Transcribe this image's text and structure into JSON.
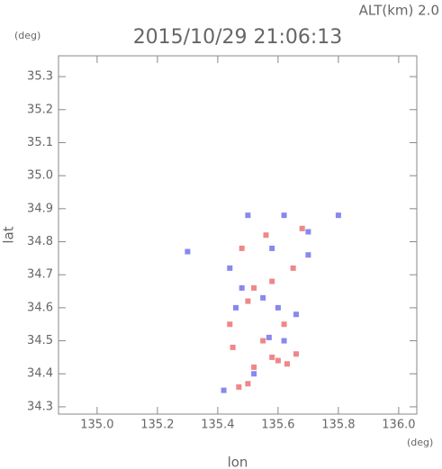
{
  "chart_data": {
    "type": "scatter",
    "title": "2015/10/29 21:06:13",
    "subtitle": "ALT(km) 2.0",
    "x_label": "lon",
    "y_label": "lat",
    "x_unit": "(deg)",
    "y_unit": "(deg)",
    "xlim": [
      134.872,
      136.06
    ],
    "ylim": [
      34.278,
      35.363
    ],
    "xticks": [
      {
        "value": 135,
        "label": "135.0"
      },
      135.2,
      135.4,
      135.6,
      135.8,
      {
        "value": 136,
        "label": "136.0"
      }
    ],
    "yticks": [
      34.3,
      34.4,
      34.5,
      34.6,
      34.7,
      34.8,
      34.9,
      {
        "value": 35,
        "label": "35.0"
      },
      35.1,
      35.2,
      35.3
    ],
    "series": [
      {
        "color": "#ee8888",
        "x": [
          135.58,
          135.6,
          135.52,
          135.5,
          135.47,
          135.63,
          135.55,
          135.45,
          135.62,
          135.5,
          135.58,
          135.65,
          135.48,
          135.68,
          135.56,
          135.44,
          135.66,
          135.52
        ],
        "values": [
          34.45,
          34.44,
          34.42,
          34.37,
          34.36,
          34.43,
          34.5,
          34.48,
          34.55,
          34.62,
          34.68,
          34.72,
          34.78,
          34.84,
          34.82,
          34.55,
          34.46,
          34.66
        ]
      },
      {
        "color": "#8888ee",
        "x": [
          135.57,
          135.62,
          135.52,
          135.42,
          135.6,
          135.55,
          135.48,
          135.44,
          135.62,
          135.8,
          135.7,
          135.58,
          135.3,
          135.66,
          135.46,
          135.5,
          135.7
        ],
        "values": [
          34.51,
          34.5,
          34.4,
          34.35,
          34.6,
          34.63,
          34.66,
          34.72,
          34.88,
          34.88,
          34.83,
          34.78,
          34.77,
          34.58,
          34.6,
          34.88,
          34.76
        ]
      }
    ]
  }
}
